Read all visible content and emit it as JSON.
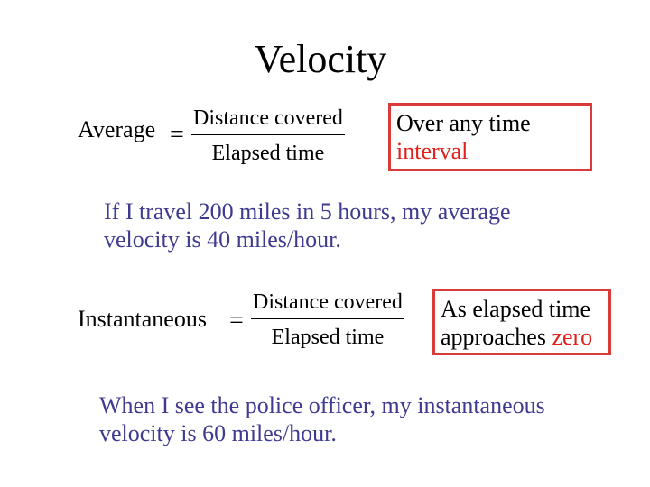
{
  "title": "Velocity",
  "average": {
    "label": "Average",
    "equals": "=",
    "numerator": "Distance covered",
    "denominator": "Elapsed time",
    "note_line1": "Over any time",
    "note_line2": "interval"
  },
  "example1": {
    "line1": "If I travel 200 miles in 5 hours, my average",
    "line2": "velocity is 40 miles/hour."
  },
  "instantaneous": {
    "label": "Instantaneous",
    "equals": "=",
    "numerator": "Distance covered",
    "denominator": "Elapsed time",
    "note_line1": "As elapsed time",
    "note_line2_prefix": "approaches ",
    "note_line2_highlight": "zero"
  },
  "example2": {
    "line1": "When I see the police officer, my instantaneous",
    "line2": "velocity is 60 miles/hour."
  },
  "colors": {
    "highlight_red": "#e0201c",
    "box_border": "#d93a3a",
    "example_blue": "#3f3a8f"
  }
}
